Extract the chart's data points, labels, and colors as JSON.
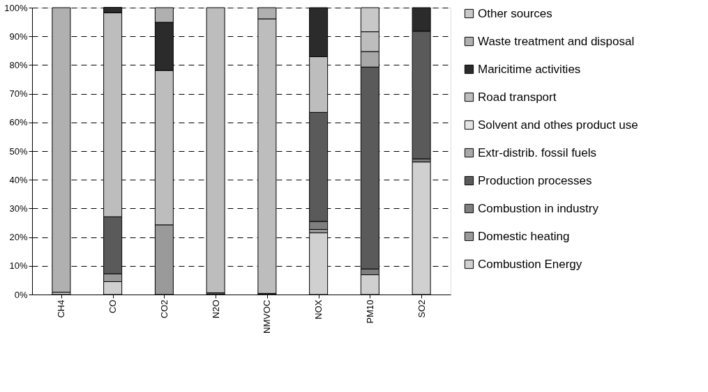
{
  "chart_data": {
    "type": "bar",
    "stacked": true,
    "categories": [
      "CH4",
      "CO",
      "CO2",
      "N2O",
      "NMVOC",
      "NOX",
      "PM10",
      "SO2"
    ],
    "series": [
      {
        "name": "Combustion Energy",
        "color": "#d0d0d0",
        "values": [
          0.8,
          4.5,
          null,
          null,
          null,
          21.5,
          6.9,
          46.2
        ]
      },
      {
        "name": "Domestic heating",
        "color": "#9a9a9a",
        "values": [
          null,
          2.7,
          24.3,
          null,
          null,
          1.2,
          null,
          null
        ]
      },
      {
        "name": "Combustion in industry",
        "color": "#7f7f7f",
        "values": [
          null,
          null,
          null,
          null,
          null,
          2.8,
          2.0,
          1.1
        ]
      },
      {
        "name": "Production processes",
        "color": "#5a5a5a",
        "values": [
          null,
          19.9,
          null,
          0.6,
          0.4,
          38.0,
          70.4,
          44.5
        ]
      },
      {
        "name": "Extr-distrib. fossil fuels",
        "color": "#a8a8a8",
        "values": [
          null,
          null,
          null,
          null,
          null,
          null,
          5.4,
          null
        ]
      },
      {
        "name": "Solvent and othes product use",
        "color": "#e4e4e4",
        "values": [
          null,
          null,
          null,
          null,
          null,
          null,
          null,
          null
        ]
      },
      {
        "name": "Road transport",
        "color": "#bdbdbd",
        "values": [
          null,
          71.1,
          53.8,
          99.4,
          95.7,
          19.4,
          6.9,
          null
        ]
      },
      {
        "name": "Maricitime activities",
        "color": "#2b2b2b",
        "values": [
          null,
          1.9,
          16.8,
          null,
          null,
          17.1,
          null,
          8.2
        ]
      },
      {
        "name": "Waste treatment and disposal",
        "color": "#b0b0b0",
        "values": [
          99.2,
          null,
          5.1,
          null,
          3.9,
          null,
          null,
          null
        ]
      },
      {
        "name": "Other sources",
        "color": "#c8c8c8",
        "values": [
          null,
          null,
          null,
          null,
          null,
          null,
          8.4,
          null
        ]
      }
    ],
    "ylim": [
      0,
      100
    ],
    "yticks": [
      {
        "value": 0,
        "label": "0%"
      },
      {
        "value": 10,
        "label": "10%"
      },
      {
        "value": 20,
        "label": "20%"
      },
      {
        "value": 30,
        "label": "30%"
      },
      {
        "value": 40,
        "label": "40%"
      },
      {
        "value": 50,
        "label": "50%"
      },
      {
        "value": 60,
        "label": "60%"
      },
      {
        "value": 70,
        "label": "70%"
      },
      {
        "value": 80,
        "label": "80%"
      },
      {
        "value": 90,
        "label": "90%"
      },
      {
        "value": 100,
        "label": "100%"
      }
    ],
    "grid": "y",
    "legend": "right"
  }
}
